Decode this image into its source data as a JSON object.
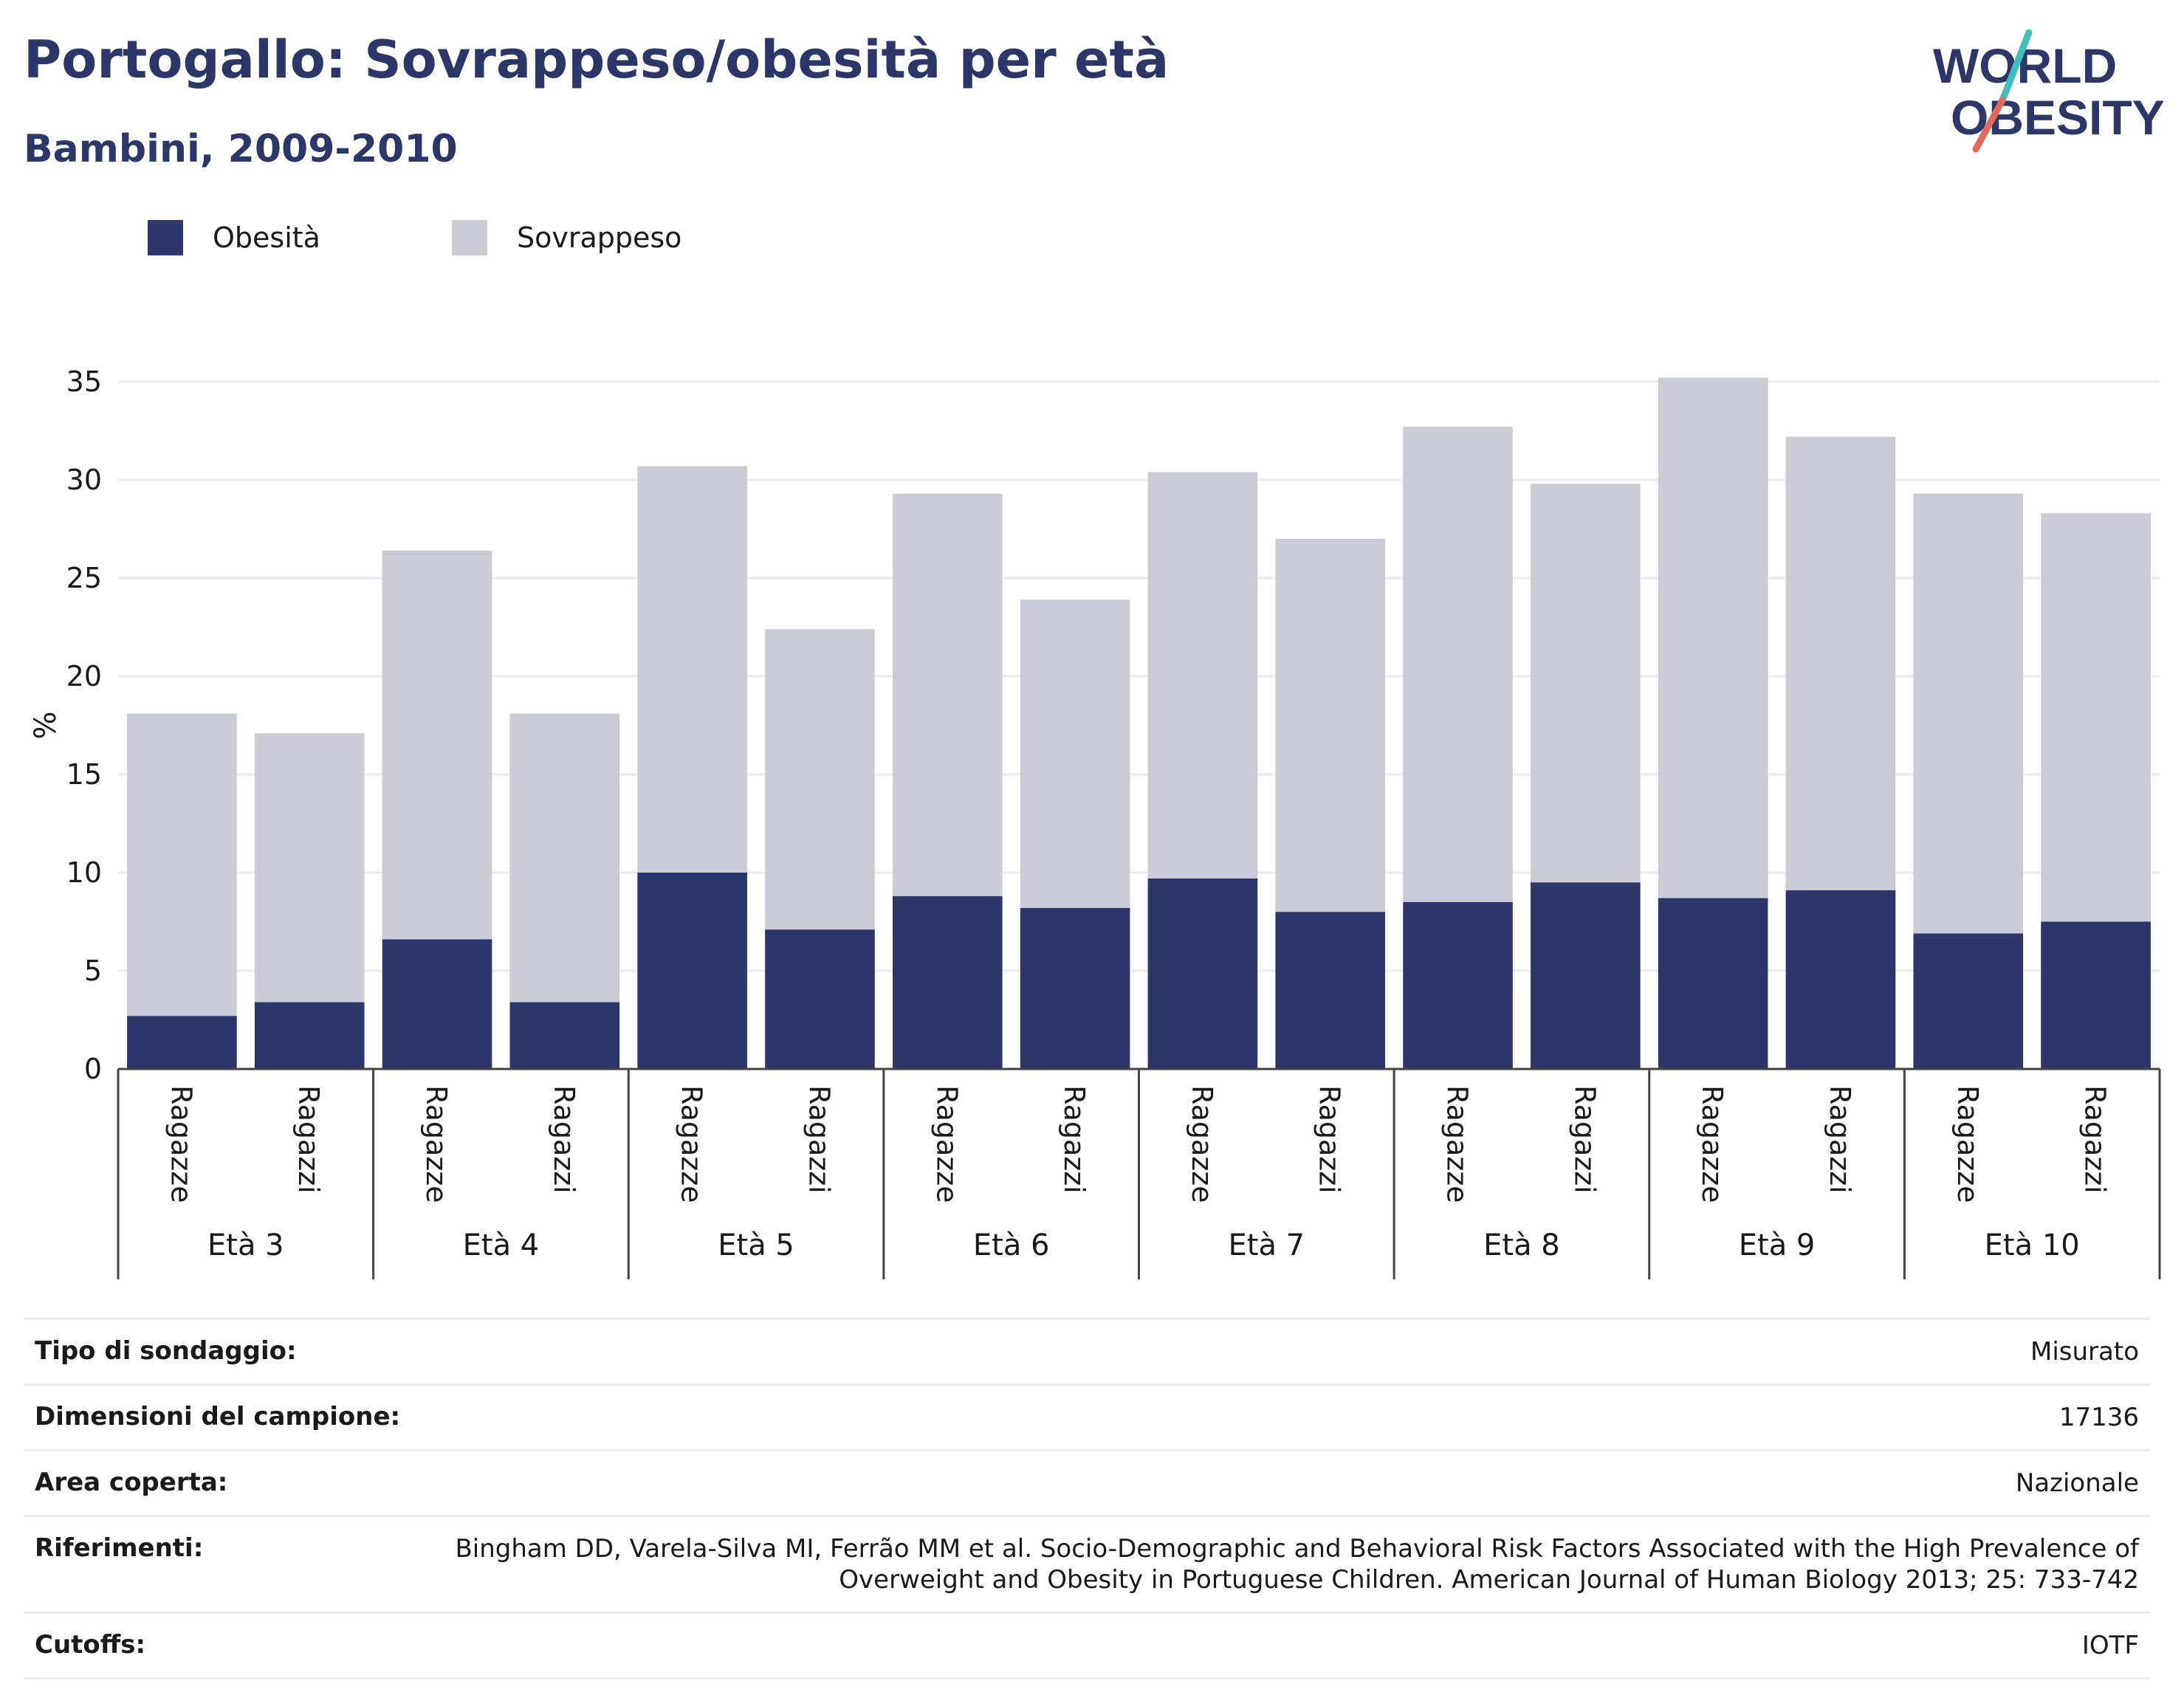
{
  "header": {
    "title": "Portogallo: Sovrappeso/obesità per età",
    "subtitle": "Bambini, 2009-2010",
    "logo_line1": "WORLD",
    "logo_line2": "OBESITY"
  },
  "colors": {
    "obesity": "#2b3768",
    "overweight": "#cacbd7",
    "title": "#2b3768",
    "logo_teal": "#3fbfc0",
    "logo_red": "#e26a5a"
  },
  "chart_data": {
    "type": "bar",
    "stacked": true,
    "ylabel": "%",
    "ylim": [
      0,
      35
    ],
    "yticks": [
      0,
      5,
      10,
      15,
      20,
      25,
      30,
      35
    ],
    "grid": true,
    "legend_position": "top-left",
    "groups": [
      "Età 3",
      "Età 4",
      "Età 5",
      "Età 6",
      "Età 7",
      "Età 8",
      "Età 9",
      "Età 10"
    ],
    "subcategories": [
      "Ragazze",
      "Ragazzi"
    ],
    "series": [
      {
        "name": "Obesità",
        "values": [
          2.7,
          3.4,
          6.6,
          3.4,
          10.0,
          7.1,
          8.8,
          8.2,
          9.7,
          8.0,
          8.5,
          9.5,
          8.7,
          9.1,
          6.9,
          7.5
        ]
      },
      {
        "name": "Sovrappeso",
        "values": [
          15.4,
          13.7,
          19.8,
          14.7,
          20.7,
          15.3,
          20.5,
          15.7,
          20.7,
          19.0,
          24.2,
          20.3,
          26.5,
          23.1,
          22.4,
          20.8
        ]
      }
    ]
  },
  "info": {
    "rows": [
      {
        "label": "Tipo di sondaggio:",
        "value": "Misurato"
      },
      {
        "label": "Dimensioni del campione:",
        "value": "17136"
      },
      {
        "label": "Area coperta:",
        "value": "Nazionale"
      },
      {
        "label": "Riferimenti:",
        "value": "Bingham DD, Varela-Silva MI, Ferrão MM et al. Socio-Demographic and Behavioral Risk Factors Associated with the High Prevalence of Overweight and Obesity in Portuguese Children. American Journal of Human Biology 2013; 25: 733-742"
      },
      {
        "label": "Cutoffs:",
        "value": "IOTF"
      }
    ]
  }
}
